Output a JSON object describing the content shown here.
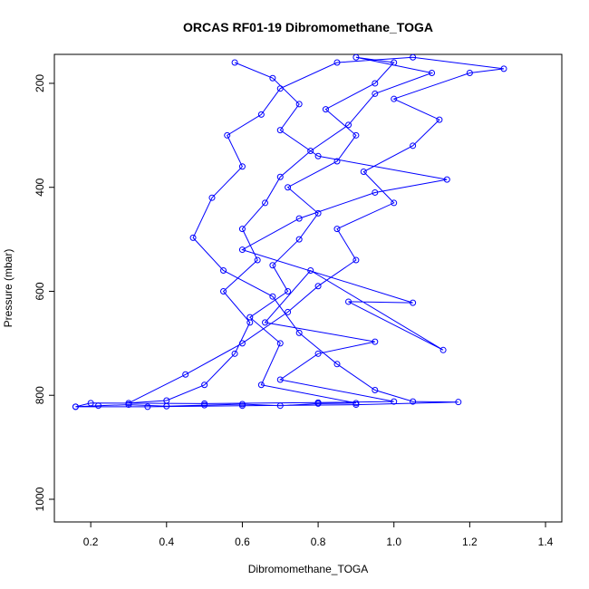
{
  "chart_data": {
    "type": "line",
    "title": "ORCAS RF01-19 Dibromomethane_TOGA",
    "x_label": "Dibromomethane_TOGA",
    "y_label": "Pressure (mbar)",
    "color": "#0000ff",
    "marker": "open-circle",
    "y_reversed": true,
    "xlim": [
      0.104,
      1.443
    ],
    "ylim": [
      144.3,
      1043.6
    ],
    "xticks": [
      0.2,
      0.4,
      0.6,
      0.8,
      {
        "value": 1,
        "label": "1.0"
      },
      1.2,
      1.4
    ],
    "yticks": [
      200,
      400,
      600,
      800,
      1000
    ],
    "x": [
      0.16,
      0.22,
      0.3,
      0.4,
      0.5,
      0.6,
      0.7,
      0.8,
      0.9,
      0.65,
      0.7,
      0.62,
      0.72,
      0.68,
      0.75,
      0.8,
      0.72,
      0.85,
      0.9,
      0.82,
      0.95,
      1.0,
      0.9,
      1.1,
      0.95,
      0.88,
      0.78,
      0.7,
      0.66,
      0.6,
      0.64,
      0.55,
      0.62,
      0.58,
      0.5,
      0.4,
      0.3,
      0.45,
      0.6,
      0.72,
      0.8,
      0.9,
      0.85,
      1.0,
      0.92,
      1.05,
      1.12,
      1.0,
      1.2,
      1.29,
      1.05,
      0.85,
      0.7,
      0.65,
      0.56,
      0.6,
      0.52,
      0.47,
      0.55,
      0.68,
      0.75,
      0.85,
      0.95,
      1.05,
      1.17,
      0.9,
      0.6,
      0.35,
      0.16,
      0.2,
      0.5,
      0.8,
      1.0,
      0.7,
      0.8,
      0.95,
      0.66,
      0.78,
      1.13,
      0.88,
      1.05,
      0.6,
      0.75,
      0.95,
      1.14,
      0.8,
      0.7,
      0.75,
      0.68,
      0.58
    ],
    "y": [
      822,
      820,
      818,
      821,
      819,
      817,
      820,
      816,
      815,
      780,
      700,
      650,
      600,
      550,
      500,
      450,
      400,
      350,
      300,
      250,
      200,
      160,
      150,
      180,
      220,
      280,
      330,
      380,
      430,
      480,
      540,
      600,
      660,
      720,
      780,
      810,
      815,
      760,
      700,
      640,
      590,
      540,
      480,
      430,
      370,
      320,
      270,
      230,
      180,
      172,
      150,
      160,
      210,
      260,
      300,
      360,
      420,
      497,
      560,
      610,
      680,
      740,
      790,
      812,
      813,
      818,
      820,
      822,
      822,
      815,
      816,
      814,
      812,
      770,
      720,
      697,
      660,
      560,
      713,
      620,
      622,
      520,
      460,
      410,
      385,
      340,
      290,
      240,
      190,
      160
    ]
  }
}
